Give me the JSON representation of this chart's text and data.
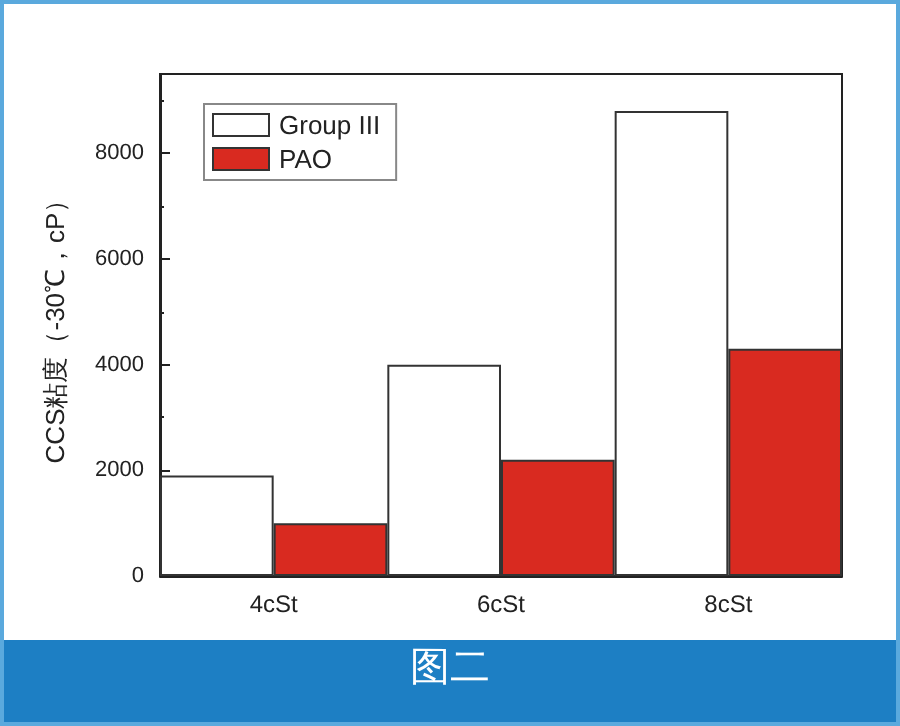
{
  "chart_data": {
    "type": "bar",
    "ylabel": "CCS粘度（-30℃，cP）",
    "categories": [
      "4cSt",
      "6cSt",
      "8cSt"
    ],
    "series": [
      {
        "name": "Group III",
        "color": "#ffffff",
        "values": [
          1900,
          4000,
          8800
        ]
      },
      {
        "name": "PAO",
        "color": "#d92a20",
        "values": [
          1000,
          2200,
          4300
        ]
      }
    ],
    "ylim": [
      0,
      9500
    ],
    "yticks": [
      0,
      2000,
      4000,
      6000,
      8000
    ],
    "grid": false,
    "legend": "top left",
    "annotations": [
      "图二"
    ]
  }
}
